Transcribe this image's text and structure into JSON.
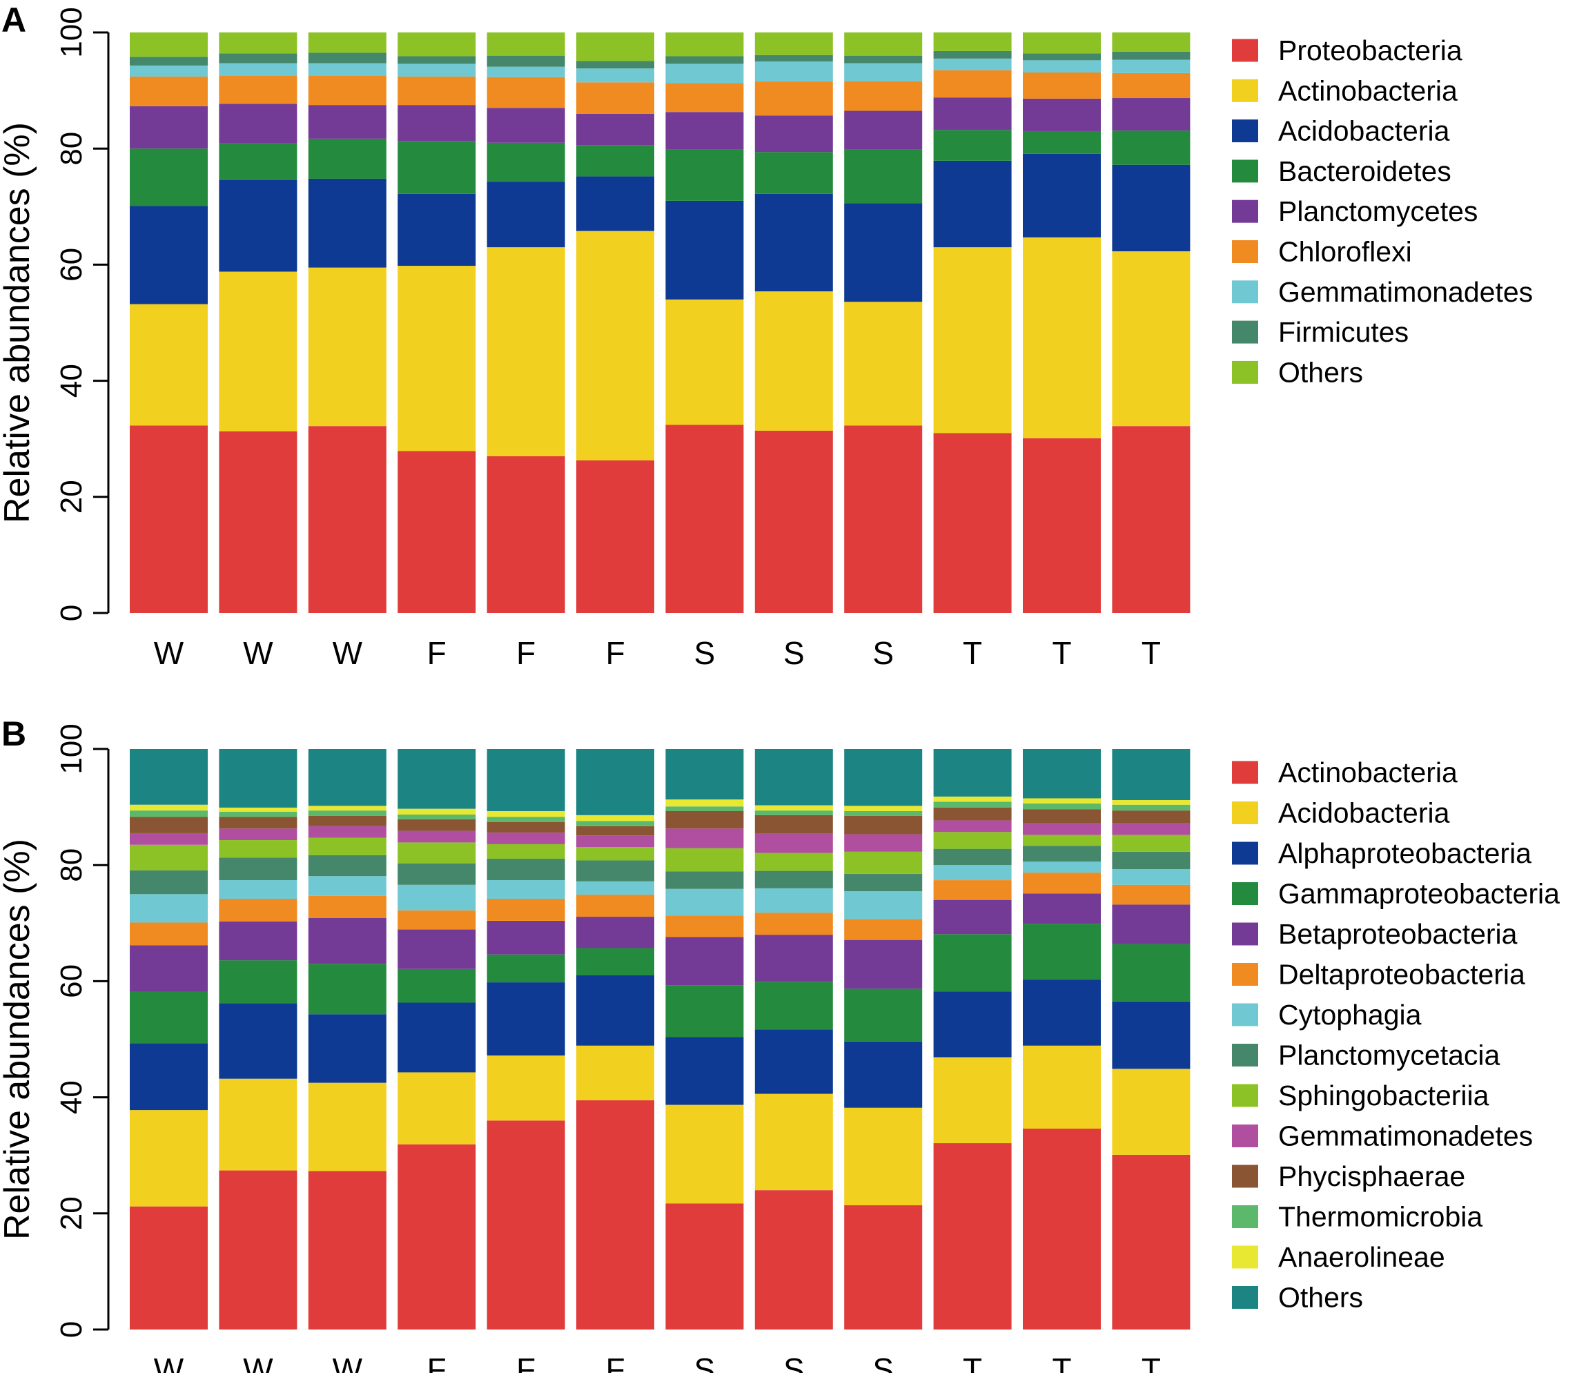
{
  "chart_data": [
    {
      "panel_label": "A",
      "type": "bar",
      "stacked": true,
      "ylabel": "Relative abundances (%)",
      "ylim": [
        0,
        100
      ],
      "yticks": [
        "0",
        "20",
        "40",
        "60",
        "80",
        "100"
      ],
      "categories": [
        "W",
        "W",
        "W",
        "F",
        "F",
        "F",
        "S",
        "S",
        "S",
        "T",
        "T",
        "T"
      ],
      "legend_position": "right",
      "series": [
        {
          "name": "Proteobacteria",
          "color": "#e03c3c",
          "values": [
            32.3,
            31.3,
            32.2,
            27.9,
            27.0,
            26.3,
            32.4,
            31.4,
            32.3,
            31.0,
            30.1,
            32.2
          ]
        },
        {
          "name": "Actinobacteria",
          "color": "#f2d01f",
          "values": [
            20.9,
            27.5,
            27.3,
            31.9,
            36.0,
            39.5,
            21.6,
            24.0,
            21.3,
            32.0,
            34.6,
            30.1
          ]
        },
        {
          "name": "Acidobacteria",
          "color": "#0e3a93",
          "values": [
            16.9,
            15.8,
            15.3,
            12.4,
            11.3,
            9.4,
            17.0,
            16.8,
            17.0,
            14.9,
            14.4,
            14.9
          ]
        },
        {
          "name": "Bacteroidetes",
          "color": "#248a3e",
          "values": [
            9.9,
            6.3,
            6.9,
            9.1,
            6.7,
            5.4,
            8.9,
            7.2,
            9.3,
            5.3,
            3.9,
            5.9
          ]
        },
        {
          "name": "Planctomycetes",
          "color": "#733b96",
          "values": [
            7.3,
            6.8,
            5.8,
            6.2,
            6.0,
            5.4,
            6.4,
            6.3,
            6.6,
            5.6,
            5.6,
            5.6
          ]
        },
        {
          "name": "Chloroflexi",
          "color": "#f08b21",
          "values": [
            5.1,
            4.9,
            5.1,
            4.9,
            5.3,
            5.4,
            5.0,
            5.8,
            5.1,
            4.7,
            4.5,
            4.3
          ]
        },
        {
          "name": "Gemmatimonadetes",
          "color": "#70c8d2",
          "values": [
            1.9,
            2.1,
            2.1,
            2.2,
            1.8,
            2.4,
            3.3,
            3.5,
            3.1,
            2.0,
            2.1,
            2.3
          ]
        },
        {
          "name": "Firmicutes",
          "color": "#44876b",
          "values": [
            1.5,
            1.7,
            1.8,
            1.3,
            1.9,
            1.3,
            1.3,
            1.1,
            1.3,
            1.3,
            1.2,
            1.4
          ]
        },
        {
          "name": "Others",
          "color": "#8cc226",
          "values": [
            4.2,
            3.6,
            3.5,
            4.1,
            4.0,
            4.9,
            4.1,
            3.9,
            4.0,
            3.2,
            3.6,
            3.3
          ]
        }
      ]
    },
    {
      "panel_label": "B",
      "type": "bar",
      "stacked": true,
      "ylabel": "Relative abundances (%)",
      "ylim": [
        0,
        100
      ],
      "yticks": [
        "0",
        "20",
        "40",
        "60",
        "80",
        "100"
      ],
      "categories": [
        "W",
        "W",
        "W",
        "F",
        "F",
        "F",
        "S",
        "S",
        "S",
        "T",
        "T",
        "T"
      ],
      "legend_position": "right",
      "series": [
        {
          "name": "Actinobacteria",
          "color": "#e03c3c",
          "values": [
            21.2,
            27.4,
            27.3,
            31.9,
            36.0,
            39.5,
            21.7,
            24.0,
            21.4,
            32.1,
            34.6,
            30.1
          ]
        },
        {
          "name": "Acidobacteria",
          "color": "#f2d01f",
          "values": [
            16.6,
            15.8,
            15.2,
            12.4,
            11.2,
            9.4,
            17.0,
            16.6,
            16.8,
            14.8,
            14.3,
            14.8
          ]
        },
        {
          "name": "Alphaproteobacteria",
          "color": "#0e3a93",
          "values": [
            11.5,
            13.0,
            11.8,
            12.0,
            12.6,
            12.1,
            11.7,
            11.1,
            11.4,
            11.3,
            11.4,
            11.6
          ]
        },
        {
          "name": "Gammaproteobacteria",
          "color": "#248a3e",
          "values": [
            8.9,
            7.4,
            8.7,
            5.8,
            4.8,
            4.7,
            8.9,
            8.2,
            9.1,
            9.9,
            9.6,
            9.9
          ]
        },
        {
          "name": "Betaproteobacteria",
          "color": "#733b96",
          "values": [
            8.0,
            6.7,
            7.9,
            6.8,
            5.8,
            5.4,
            8.3,
            8.1,
            8.4,
            5.9,
            5.2,
            6.8
          ]
        },
        {
          "name": "Deltaproteobacteria",
          "color": "#f08b21",
          "values": [
            3.9,
            3.9,
            3.8,
            3.3,
            3.8,
            3.8,
            3.7,
            3.8,
            3.6,
            3.4,
            3.6,
            3.4
          ]
        },
        {
          "name": "Cytophagia",
          "color": "#70c8d2",
          "values": [
            4.9,
            3.2,
            3.4,
            4.4,
            3.2,
            2.3,
            4.6,
            4.2,
            4.8,
            2.6,
            1.9,
            2.7
          ]
        },
        {
          "name": "Planctomycetacia",
          "color": "#44876b",
          "values": [
            4.1,
            3.9,
            3.6,
            3.7,
            3.7,
            3.6,
            3.0,
            3.0,
            3.0,
            2.8,
            2.7,
            3.0
          ]
        },
        {
          "name": "Sphingobacteriia",
          "color": "#8cc226",
          "values": [
            4.4,
            3.0,
            3.0,
            3.6,
            2.5,
            2.3,
            4.0,
            3.1,
            3.8,
            2.9,
            1.9,
            2.9
          ]
        },
        {
          "name": "Gemmatimonadetes",
          "color": "#b04f9f",
          "values": [
            2.0,
            2.0,
            2.0,
            2.0,
            2.0,
            2.0,
            3.4,
            3.3,
            3.0,
            2.0,
            2.0,
            2.0
          ]
        },
        {
          "name": "Phycisphaerae",
          "color": "#8a5532",
          "values": [
            2.8,
            2.0,
            1.8,
            2.0,
            1.8,
            1.6,
            3.0,
            3.2,
            3.2,
            2.2,
            2.4,
            2.2
          ]
        },
        {
          "name": "Thermomicrobia",
          "color": "#5cb86a",
          "values": [
            1.1,
            0.9,
            0.9,
            0.8,
            0.9,
            0.9,
            0.8,
            0.8,
            0.8,
            1.0,
            1.0,
            1.0
          ]
        },
        {
          "name": "Anaerolineae",
          "color": "#e8e832",
          "values": [
            1.0,
            0.7,
            0.8,
            1.0,
            1.0,
            1.0,
            1.2,
            0.9,
            0.9,
            0.9,
            0.9,
            0.8
          ]
        },
        {
          "name": "Others",
          "color": "#1d8484",
          "values": [
            9.6,
            10.1,
            9.8,
            10.3,
            10.7,
            11.4,
            8.7,
            9.7,
            9.8,
            8.2,
            8.5,
            8.8
          ]
        }
      ]
    }
  ]
}
